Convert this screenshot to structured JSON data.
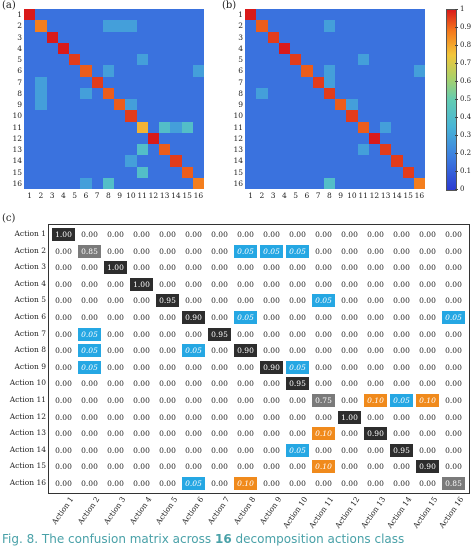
{
  "panels": {
    "a_label": "(a)",
    "b_label": "(b)",
    "c_label": "(c)"
  },
  "heatmap_ticks": [
    "1",
    "2",
    "3",
    "4",
    "5",
    "6",
    "7",
    "8",
    "9",
    "10",
    "11",
    "12",
    "13",
    "14",
    "15",
    "16"
  ],
  "colorbar": {
    "ticks": [
      "1",
      "0.9",
      "0.8",
      "0.7",
      "0.6",
      "0.5",
      "0.4",
      "0.3",
      "0.2",
      "0.1",
      "0"
    ],
    "colors": [
      "#2b3bd1",
      "#3d7de0",
      "#49b5d6",
      "#63ccb2",
      "#a9d16a",
      "#f2c63a",
      "#f47a1c",
      "#d91a1a"
    ]
  },
  "chart_data": [
    {
      "type": "heatmap",
      "panel": "(a)",
      "x": [
        1,
        2,
        3,
        4,
        5,
        6,
        7,
        8,
        9,
        10,
        11,
        12,
        13,
        14,
        15,
        16
      ],
      "y": [
        1,
        2,
        3,
        4,
        5,
        6,
        7,
        8,
        9,
        10,
        11,
        12,
        13,
        14,
        15,
        16
      ],
      "diagonal": [
        1.0,
        0.85,
        1.0,
        1.0,
        0.95,
        0.9,
        0.95,
        0.9,
        0.9,
        0.95,
        0.75,
        1.0,
        0.9,
        0.95,
        0.9,
        0.85
      ],
      "off_diagonal": [
        {
          "row": 2,
          "col": 8,
          "value": 0.05
        },
        {
          "row": 2,
          "col": 9,
          "value": 0.05
        },
        {
          "row": 2,
          "col": 10,
          "value": 0.05
        },
        {
          "row": 5,
          "col": 11,
          "value": 0.05
        },
        {
          "row": 6,
          "col": 8,
          "value": 0.05
        },
        {
          "row": 6,
          "col": 16,
          "value": 0.05
        },
        {
          "row": 7,
          "col": 2,
          "value": 0.05
        },
        {
          "row": 8,
          "col": 2,
          "value": 0.05
        },
        {
          "row": 8,
          "col": 6,
          "value": 0.05
        },
        {
          "row": 9,
          "col": 2,
          "value": 0.05
        },
        {
          "row": 9,
          "col": 10,
          "value": 0.05
        },
        {
          "row": 11,
          "col": 13,
          "value": 0.1
        },
        {
          "row": 11,
          "col": 14,
          "value": 0.05
        },
        {
          "row": 11,
          "col": 15,
          "value": 0.1
        },
        {
          "row": 13,
          "col": 11,
          "value": 0.1
        },
        {
          "row": 14,
          "col": 10,
          "value": 0.05
        },
        {
          "row": 15,
          "col": 11,
          "value": 0.1
        },
        {
          "row": 16,
          "col": 6,
          "value": 0.05
        },
        {
          "row": 16,
          "col": 8,
          "value": 0.1
        }
      ],
      "range": [
        0,
        1
      ]
    },
    {
      "type": "heatmap",
      "panel": "(b)",
      "x": [
        1,
        2,
        3,
        4,
        5,
        6,
        7,
        8,
        9,
        10,
        11,
        12,
        13,
        14,
        15,
        16
      ],
      "y": [
        1,
        2,
        3,
        4,
        5,
        6,
        7,
        8,
        9,
        10,
        11,
        12,
        13,
        14,
        15,
        16
      ],
      "diagonal": [
        1.0,
        0.9,
        0.95,
        1.0,
        0.95,
        0.9,
        0.95,
        0.95,
        0.9,
        0.95,
        0.9,
        1.0,
        0.95,
        0.95,
        0.95,
        0.85
      ],
      "off_diagonal": [
        {
          "row": 2,
          "col": 8,
          "value": 0.05
        },
        {
          "row": 5,
          "col": 11,
          "value": 0.05
        },
        {
          "row": 6,
          "col": 8,
          "value": 0.05
        },
        {
          "row": 6,
          "col": 16,
          "value": 0.05
        },
        {
          "row": 7,
          "col": 8,
          "value": 0.05
        },
        {
          "row": 8,
          "col": 2,
          "value": 0.05
        },
        {
          "row": 9,
          "col": 10,
          "value": 0.05
        },
        {
          "row": 11,
          "col": 13,
          "value": 0.05
        },
        {
          "row": 13,
          "col": 11,
          "value": 0.05
        },
        {
          "row": 16,
          "col": 8,
          "value": 0.1
        }
      ],
      "range": [
        0,
        1
      ]
    },
    {
      "type": "table",
      "panel": "(c)",
      "row_labels": [
        "Action 1",
        "Action 2",
        "Action 3",
        "Action 4",
        "Action 5",
        "Action 6",
        "Action 7",
        "Action 8",
        "Action 9",
        "Action 10",
        "Action 11",
        "Action 12",
        "Action 13",
        "Action 14",
        "Action 15",
        "Action 16"
      ],
      "col_labels": [
        "Action 1",
        "Action 2",
        "Action 3",
        "Action 4",
        "Action 5",
        "Action 6",
        "Action 7",
        "Action 8",
        "Action 9",
        "Action 10",
        "Action 11",
        "Action 12",
        "Action 13",
        "Action 14",
        "Action 15",
        "Action 16"
      ],
      "cells": [
        [
          "1.00",
          "0.00",
          "0.00",
          "0.00",
          "0.00",
          "0.00",
          "0.00",
          "0.00",
          "0.00",
          "0.00",
          "0.00",
          "0.00",
          "0.00",
          "0.00",
          "0.00",
          "0.00"
        ],
        [
          "0.00",
          "0.85",
          "0.00",
          "0.00",
          "0.00",
          "0.00",
          "0.00",
          "0.05",
          "0.05",
          "0.05",
          "0.00",
          "0.00",
          "0.00",
          "0.00",
          "0.00",
          "0.00"
        ],
        [
          "0.00",
          "0.00",
          "1.00",
          "0.00",
          "0.00",
          "0.00",
          "0.00",
          "0.00",
          "0.00",
          "0.00",
          "0.00",
          "0.00",
          "0.00",
          "0.00",
          "0.00",
          "0.00"
        ],
        [
          "0.00",
          "0.00",
          "0.00",
          "1.00",
          "0.00",
          "0.00",
          "0.00",
          "0.00",
          "0.00",
          "0.00",
          "0.00",
          "0.00",
          "0.00",
          "0.00",
          "0.00",
          "0.00"
        ],
        [
          "0.00",
          "0.00",
          "0.00",
          "0.00",
          "0.95",
          "0.00",
          "0.00",
          "0.00",
          "0.00",
          "0.00",
          "0.05",
          "0.00",
          "0.00",
          "0.00",
          "0.00",
          "0.00"
        ],
        [
          "0.00",
          "0.00",
          "0.00",
          "0.00",
          "0.00",
          "0.90",
          "0.00",
          "0.05",
          "0.00",
          "0.00",
          "0.00",
          "0.00",
          "0.00",
          "0.00",
          "0.00",
          "0.05"
        ],
        [
          "0.00",
          "0.05",
          "0.00",
          "0.00",
          "0.00",
          "0.00",
          "0.95",
          "0.00",
          "0.00",
          "0.00",
          "0.00",
          "0.00",
          "0.00",
          "0.00",
          "0.00",
          "0.00"
        ],
        [
          "0.00",
          "0.05",
          "0.00",
          "0.00",
          "0.00",
          "0.05",
          "0.00",
          "0.90",
          "0.00",
          "0.00",
          "0.00",
          "0.00",
          "0.00",
          "0.00",
          "0.00",
          "0.00"
        ],
        [
          "0.00",
          "0.05",
          "0.00",
          "0.00",
          "0.00",
          "0.00",
          "0.00",
          "0.00",
          "0.90",
          "0.05",
          "0.00",
          "0.00",
          "0.00",
          "0.00",
          "0.00",
          "0.00"
        ],
        [
          "0.00",
          "0.00",
          "0.00",
          "0.00",
          "0.00",
          "0.00",
          "0.00",
          "0.00",
          "0.00",
          "0.95",
          "0.00",
          "0.00",
          "0.00",
          "0.00",
          "0.00",
          "0.00"
        ],
        [
          "0.00",
          "0.00",
          "0.00",
          "0.00",
          "0.00",
          "0.00",
          "0.00",
          "0.00",
          "0.00",
          "0.00",
          "0.75",
          "0.00",
          "0.10",
          "0.05",
          "0.10",
          "0.00"
        ],
        [
          "0.00",
          "0.00",
          "0.00",
          "0.00",
          "0.00",
          "0.00",
          "0.00",
          "0.00",
          "0.00",
          "0.00",
          "0.00",
          "1.00",
          "0.00",
          "0.00",
          "0.00",
          "0.00"
        ],
        [
          "0.00",
          "0.00",
          "0.00",
          "0.00",
          "0.00",
          "0.00",
          "0.00",
          "0.00",
          "0.00",
          "0.00",
          "0.10",
          "0.00",
          "0.90",
          "0.00",
          "0.00",
          "0.00"
        ],
        [
          "0.00",
          "0.00",
          "0.00",
          "0.00",
          "0.00",
          "0.00",
          "0.00",
          "0.00",
          "0.00",
          "0.05",
          "0.00",
          "0.00",
          "0.00",
          "0.95",
          "0.00",
          "0.00"
        ],
        [
          "0.00",
          "0.00",
          "0.00",
          "0.00",
          "0.00",
          "0.00",
          "0.00",
          "0.00",
          "0.00",
          "0.00",
          "0.10",
          "0.00",
          "0.00",
          "0.00",
          "0.90",
          "0.00"
        ],
        [
          "0.00",
          "0.00",
          "0.00",
          "0.00",
          "0.00",
          "0.05",
          "0.00",
          "0.10",
          "0.00",
          "0.00",
          "0.00",
          "0.00",
          "0.00",
          "0.00",
          "0.00",
          "0.85"
        ]
      ],
      "cell_styles": [
        [
          "dark",
          "",
          "",
          "",
          "",
          "",
          "",
          "",
          "",
          "",
          "",
          "",
          "",
          "",
          "",
          ""
        ],
        [
          "",
          "gray",
          "",
          "",
          "",
          "",
          "",
          "blue",
          "blue",
          "blue",
          "",
          "",
          "",
          "",
          "",
          ""
        ],
        [
          "",
          "",
          "dark",
          "",
          "",
          "",
          "",
          "",
          "",
          "",
          "",
          "",
          "",
          "",
          "",
          ""
        ],
        [
          "",
          "",
          "",
          "dark",
          "",
          "",
          "",
          "",
          "",
          "",
          "",
          "",
          "",
          "",
          "",
          ""
        ],
        [
          "",
          "",
          "",
          "",
          "dark",
          "",
          "",
          "",
          "",
          "",
          "blue",
          "",
          "",
          "",
          "",
          ""
        ],
        [
          "",
          "",
          "",
          "",
          "",
          "dark",
          "",
          "blue",
          "",
          "",
          "",
          "",
          "",
          "",
          "",
          "blue"
        ],
        [
          "",
          "blue",
          "",
          "",
          "",
          "",
          "dark",
          "",
          "",
          "",
          "",
          "",
          "",
          "",
          "",
          ""
        ],
        [
          "",
          "blue",
          "",
          "",
          "",
          "blue",
          "",
          "dark",
          "",
          "",
          "",
          "",
          "",
          "",
          "",
          ""
        ],
        [
          "",
          "blue",
          "",
          "",
          "",
          "",
          "",
          "",
          "dark",
          "blue",
          "",
          "",
          "",
          "",
          "",
          ""
        ],
        [
          "",
          "",
          "",
          "",
          "",
          "",
          "",
          "",
          "",
          "dark",
          "",
          "",
          "",
          "",
          "",
          ""
        ],
        [
          "",
          "",
          "",
          "",
          "",
          "",
          "",
          "",
          "",
          "",
          "gray",
          "",
          "orange",
          "blue",
          "orange",
          ""
        ],
        [
          "",
          "",
          "",
          "",
          "",
          "",
          "",
          "",
          "",
          "",
          "",
          "dark",
          "",
          "",
          "",
          ""
        ],
        [
          "",
          "",
          "",
          "",
          "",
          "",
          "",
          "",
          "",
          "",
          "orange",
          "",
          "dark",
          "",
          "",
          ""
        ],
        [
          "",
          "",
          "",
          "",
          "",
          "",
          "",
          "",
          "",
          "blue",
          "",
          "",
          "",
          "dark",
          "",
          ""
        ],
        [
          "",
          "",
          "",
          "",
          "",
          "",
          "",
          "",
          "",
          "",
          "orange",
          "",
          "",
          "",
          "dark",
          ""
        ],
        [
          "",
          "",
          "",
          "",
          "",
          "blue",
          "",
          "orange",
          "",
          "",
          "",
          "",
          "",
          "",
          "",
          "gray"
        ]
      ]
    }
  ],
  "caption": {
    "prefix": "Fig. 8.",
    "text_before_bold": "The confusion matrix across",
    "bold": "16",
    "text_after_bold": "decomposition actions class"
  }
}
